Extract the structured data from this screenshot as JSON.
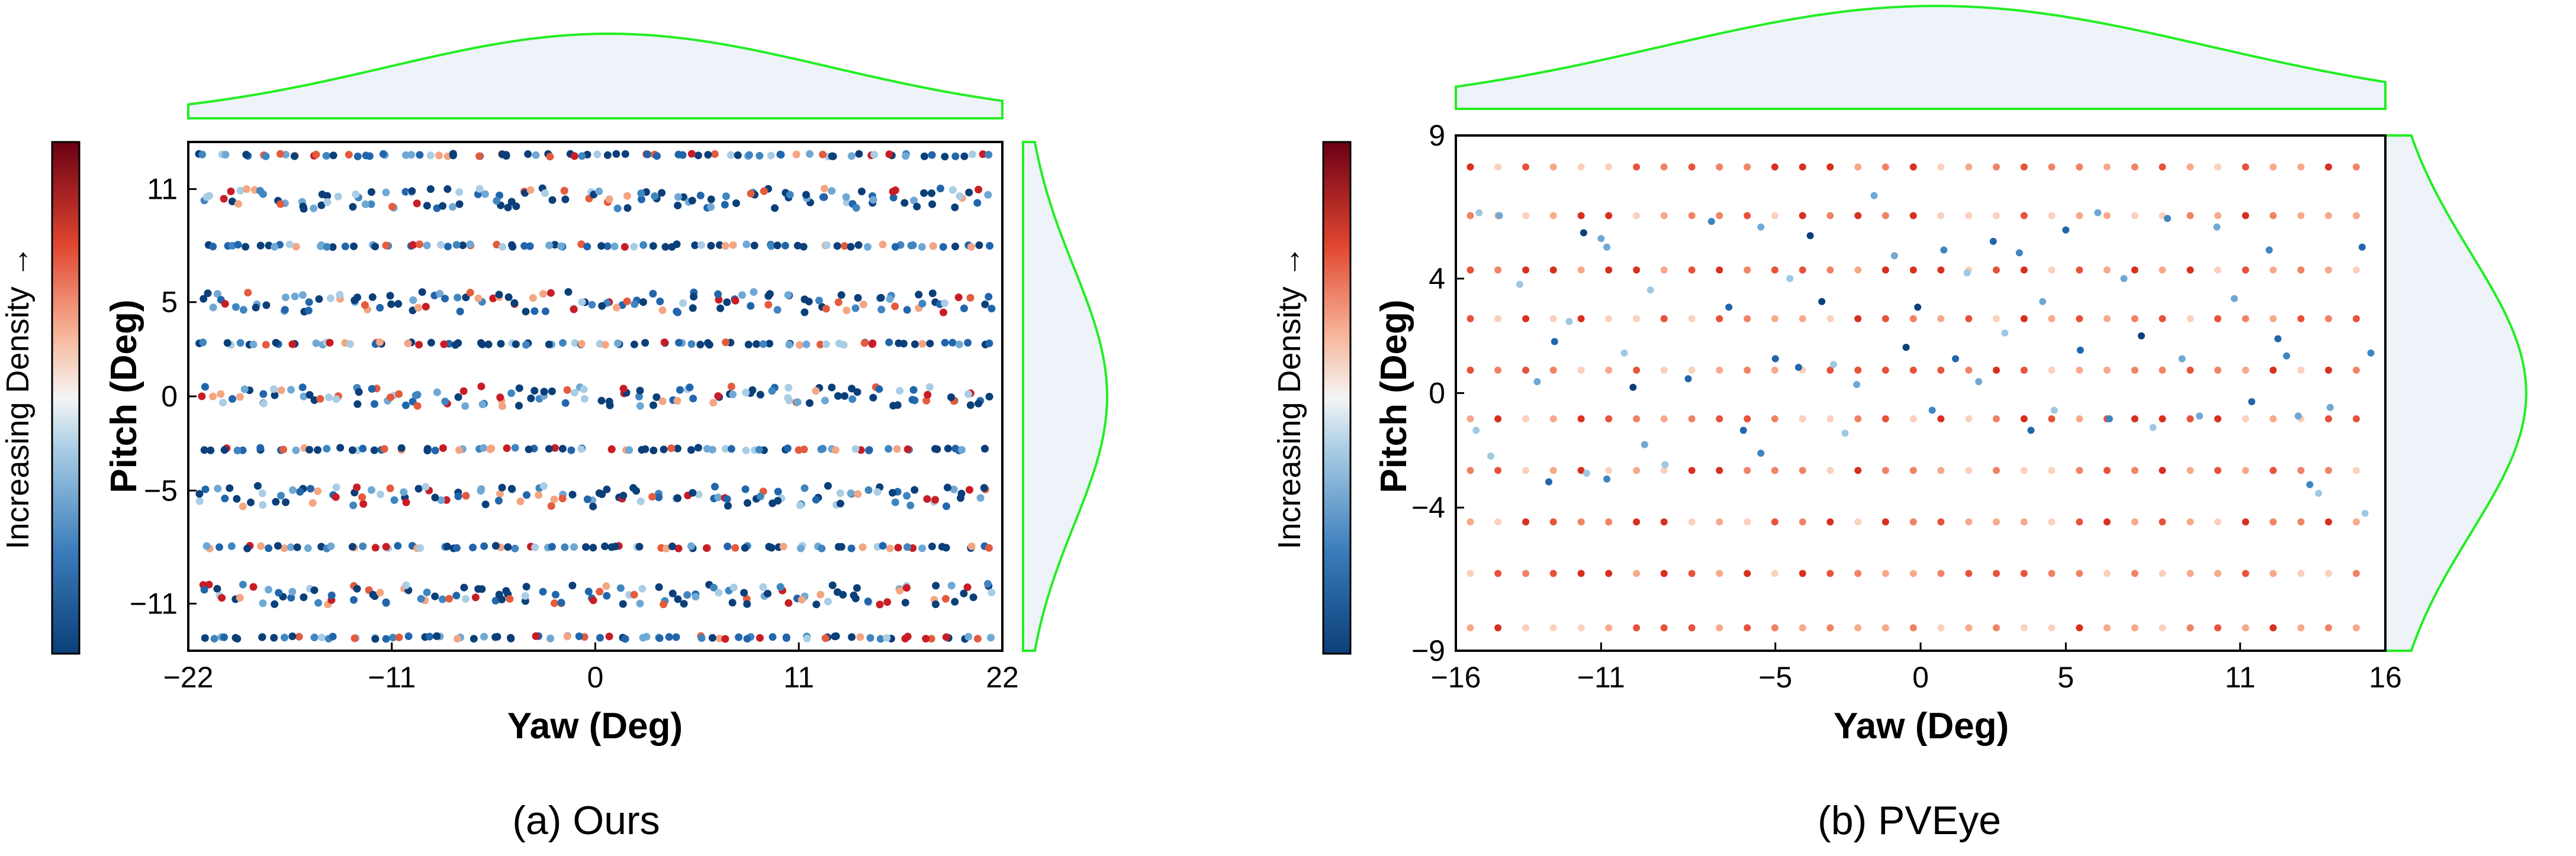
{
  "colors": {
    "density_low": "#0b3f79",
    "density_mid": "#f7f7f7",
    "density_high": "#6b0014",
    "marginal_line": "#22ee22",
    "marginal_fill": "#eef3fa",
    "axis": "#000000"
  },
  "chart_data": [
    {
      "type": "scatter",
      "caption": "(a) Ours",
      "xlabel": "Yaw (Deg)",
      "ylabel": "Pitch (Deg)",
      "colorbar_label": "Increasing Density →",
      "xlim": [
        -22,
        22
      ],
      "ylim": [
        -13.5,
        13.5
      ],
      "xticks": [
        -22,
        -11,
        0,
        11,
        22
      ],
      "xtick_labels": [
        "−22",
        "−11",
        "0",
        "11",
        "22"
      ],
      "yticks": [
        -11,
        -5,
        0,
        5,
        11
      ],
      "ytick_labels": [
        "−11",
        "−5",
        "0",
        "5",
        "11"
      ],
      "grid": false,
      "marginal_top": "kde of yaw, peak near 0",
      "marginal_right": "kde of pitch, peak near 0",
      "pattern": {
        "rows": [
          12.8,
          10.5,
          8.0,
          5.0,
          2.8,
          0,
          -2.8,
          -5.3,
          -8.0,
          -10.5,
          -12.8
        ],
        "x_start": -21,
        "x_end": 21,
        "columns_per_row": 44,
        "jitter_rows": [
          10.5,
          5.0,
          0,
          -5.3,
          -10.5
        ]
      }
    },
    {
      "type": "scatter",
      "caption": "(b) PVEye",
      "xlabel": "Yaw (Deg)",
      "ylabel": "Pitch (Deg)",
      "colorbar_label": "Increasing Density →",
      "xlim": [
        -16,
        16
      ],
      "ylim": [
        -9,
        9
      ],
      "xticks": [
        -16,
        -11,
        -5,
        0,
        5,
        11,
        16
      ],
      "xtick_labels": [
        "−16",
        "−11",
        "−5",
        "0",
        "5",
        "11",
        "16"
      ],
      "yticks": [
        -9,
        -4,
        0,
        4,
        9
      ],
      "ytick_labels": [
        "−9",
        "−4",
        "0",
        "4",
        "9"
      ],
      "grid": false,
      "marginal_top": "kde of yaw, peak near 0",
      "marginal_right": "kde of pitch, peak near 0",
      "grid_points": {
        "rows": [
          7.9,
          6.2,
          4.3,
          2.6,
          0.8,
          -0.9,
          -2.7,
          -4.5,
          -6.3,
          -8.2
        ],
        "x_start": -15.5,
        "x_end": 15,
        "columns": 17
      },
      "scatter_points": [
        [
          -15.2,
          6.3
        ],
        [
          -14.5,
          6.2
        ],
        [
          -13.8,
          3.8
        ],
        [
          -13.2,
          0.4
        ],
        [
          -12.6,
          1.8
        ],
        [
          -12.1,
          2.5
        ],
        [
          -11.6,
          5.6
        ],
        [
          -11.0,
          5.4
        ],
        [
          -10.8,
          5.1
        ],
        [
          -10.2,
          1.4
        ],
        [
          -9.9,
          0.2
        ],
        [
          -9.5,
          -1.8
        ],
        [
          -11.5,
          -2.8
        ],
        [
          -10.8,
          -3.0
        ],
        [
          -12.8,
          -3.1
        ],
        [
          -8.0,
          0.5
        ],
        [
          -7.2,
          6.0
        ],
        [
          -6.6,
          3.0
        ],
        [
          -6.1,
          -1.3
        ],
        [
          -5.5,
          5.8
        ],
        [
          -5.0,
          1.2
        ],
        [
          -4.5,
          4.0
        ],
        [
          -4.2,
          0.9
        ],
        [
          -3.8,
          5.5
        ],
        [
          -3.4,
          3.2
        ],
        [
          -3.0,
          1.0
        ],
        [
          -2.6,
          -1.4
        ],
        [
          -2.2,
          0.3
        ],
        [
          -1.6,
          6.9
        ],
        [
          -0.9,
          4.8
        ],
        [
          -0.5,
          1.6
        ],
        [
          -0.1,
          3.0
        ],
        [
          0.4,
          -0.6
        ],
        [
          0.8,
          5.0
        ],
        [
          1.2,
          1.2
        ],
        [
          1.6,
          4.2
        ],
        [
          2.0,
          0.4
        ],
        [
          2.5,
          5.3
        ],
        [
          2.9,
          2.1
        ],
        [
          3.4,
          4.9
        ],
        [
          3.8,
          -1.3
        ],
        [
          4.2,
          3.2
        ],
        [
          4.6,
          -0.6
        ],
        [
          5.0,
          5.7
        ],
        [
          5.5,
          1.5
        ],
        [
          6.1,
          6.3
        ],
        [
          6.5,
          -0.9
        ],
        [
          7.0,
          4.0
        ],
        [
          7.6,
          2.0
        ],
        [
          8.0,
          -1.2
        ],
        [
          8.5,
          6.1
        ],
        [
          9.0,
          1.2
        ],
        [
          9.6,
          -0.8
        ],
        [
          10.2,
          5.8
        ],
        [
          10.8,
          3.3
        ],
        [
          11.4,
          -0.3
        ],
        [
          12.0,
          5.0
        ],
        [
          12.3,
          1.9
        ],
        [
          12.6,
          1.3
        ],
        [
          13.0,
          -0.8
        ],
        [
          13.4,
          -3.2
        ],
        [
          13.7,
          -3.5
        ],
        [
          14.1,
          -0.5
        ],
        [
          15.2,
          5.1
        ],
        [
          15.3,
          -4.2
        ],
        [
          15.5,
          1.4
        ],
        [
          -5.5,
          -2.1
        ],
        [
          -8.8,
          -2.5
        ],
        [
          -14.8,
          -2.2
        ],
        [
          -15.3,
          -1.3
        ],
        [
          -9.3,
          3.6
        ]
      ]
    }
  ]
}
